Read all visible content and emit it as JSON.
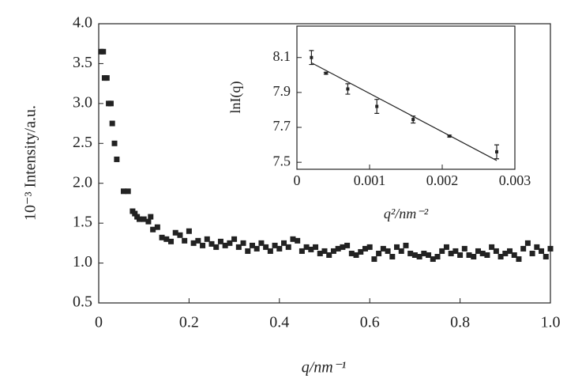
{
  "chart_data": [
    {
      "type": "scatter",
      "x_label": "q/nm⁻¹",
      "y_label": "10⁻³ Intensity/a.u.",
      "x": [
        0.005,
        0.01,
        0.013,
        0.018,
        0.022,
        0.027,
        0.03,
        0.035,
        0.04,
        0.055,
        0.065,
        0.075,
        0.08,
        0.085,
        0.09,
        0.1,
        0.11,
        0.115,
        0.12,
        0.13,
        0.14,
        0.15,
        0.16,
        0.17,
        0.18,
        0.19,
        0.2,
        0.21,
        0.22,
        0.23,
        0.24,
        0.25,
        0.26,
        0.27,
        0.28,
        0.29,
        0.3,
        0.31,
        0.32,
        0.33,
        0.34,
        0.35,
        0.36,
        0.37,
        0.38,
        0.39,
        0.4,
        0.41,
        0.42,
        0.43,
        0.44,
        0.45,
        0.46,
        0.47,
        0.48,
        0.49,
        0.5,
        0.51,
        0.52,
        0.53,
        0.54,
        0.55,
        0.56,
        0.57,
        0.58,
        0.59,
        0.6,
        0.61,
        0.62,
        0.63,
        0.64,
        0.65,
        0.66,
        0.67,
        0.68,
        0.69,
        0.7,
        0.71,
        0.72,
        0.73,
        0.74,
        0.75,
        0.76,
        0.77,
        0.78,
        0.79,
        0.8,
        0.81,
        0.82,
        0.83,
        0.84,
        0.85,
        0.86,
        0.87,
        0.88,
        0.89,
        0.9,
        0.91,
        0.92,
        0.93,
        0.94,
        0.95,
        0.96,
        0.97,
        0.98,
        0.99,
        1.0
      ],
      "values": [
        3.65,
        3.65,
        3.32,
        3.32,
        3.0,
        3.0,
        2.75,
        2.5,
        2.3,
        1.9,
        1.9,
        1.65,
        1.62,
        1.58,
        1.55,
        1.55,
        1.52,
        1.58,
        1.42,
        1.45,
        1.32,
        1.3,
        1.27,
        1.38,
        1.35,
        1.28,
        1.4,
        1.25,
        1.28,
        1.22,
        1.3,
        1.24,
        1.2,
        1.27,
        1.22,
        1.25,
        1.3,
        1.2,
        1.25,
        1.15,
        1.22,
        1.18,
        1.25,
        1.2,
        1.15,
        1.22,
        1.18,
        1.25,
        1.2,
        1.3,
        1.28,
        1.15,
        1.2,
        1.17,
        1.2,
        1.12,
        1.15,
        1.1,
        1.15,
        1.18,
        1.2,
        1.22,
        1.12,
        1.1,
        1.14,
        1.18,
        1.2,
        1.05,
        1.12,
        1.18,
        1.15,
        1.08,
        1.2,
        1.15,
        1.22,
        1.12,
        1.1,
        1.08,
        1.12,
        1.1,
        1.05,
        1.08,
        1.15,
        1.2,
        1.12,
        1.15,
        1.1,
        1.18,
        1.1,
        1.08,
        1.15,
        1.12,
        1.1,
        1.2,
        1.15,
        1.08,
        1.12,
        1.15,
        1.1,
        1.05,
        1.18,
        1.25,
        1.12,
        1.2,
        1.15,
        1.08,
        1.18
      ],
      "color": "#222222",
      "xlim": [
        0,
        1.0
      ],
      "xticks": [
        0,
        0.2,
        0.4,
        0.6,
        0.8,
        {
          "value": 1.0,
          "label": "1.0"
        }
      ],
      "ylim": [
        0.5,
        4.0
      ],
      "yticks": [
        {
          "value": 0.5,
          "label": "0.5"
        },
        {
          "value": 1.0,
          "label": "1.0"
        },
        1.5,
        {
          "value": 2.0,
          "label": "2.0"
        },
        2.5,
        {
          "value": 3.0,
          "label": "3.0"
        },
        3.5,
        {
          "value": 4.0,
          "label": "4.0"
        }
      ]
    },
    {
      "type": "errorbar",
      "x_label": "q²/nm⁻²",
      "y_label": "lnI(q)",
      "x": [
        0.0002,
        0.0004,
        0.0007,
        0.0011,
        0.0016,
        0.0021,
        0.00275
      ],
      "values": [
        8.1,
        8.01,
        7.92,
        7.82,
        7.745,
        7.65,
        7.56
      ],
      "errors": [
        0.04,
        0.005,
        0.03,
        0.04,
        0.02,
        0.005,
        0.04
      ],
      "fit": {
        "x": [
          0.0002,
          0.00275
        ],
        "y": [
          8.07,
          7.51
        ]
      },
      "color": "#222222",
      "xlim": [
        0,
        0.003
      ],
      "xticks": [
        0,
        0.001,
        0.002,
        0.003
      ],
      "ylim": [
        7.46,
        8.28
      ],
      "yticks": [
        7.5,
        7.7,
        7.9,
        8.1
      ]
    }
  ]
}
